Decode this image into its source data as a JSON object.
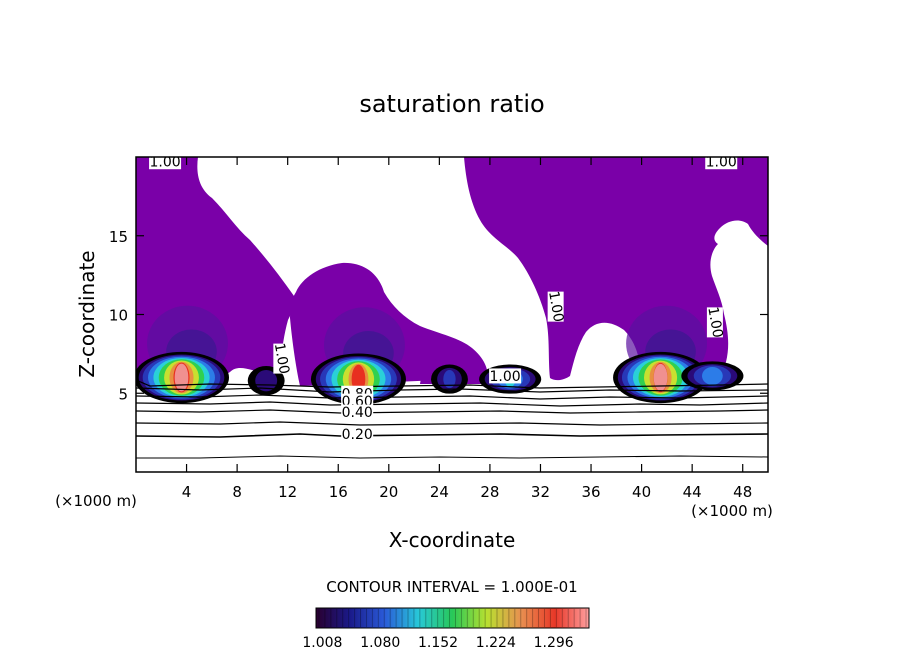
{
  "chart_data": {
    "type": "heatmap",
    "title": "saturation ratio",
    "xlabel": "X-coordinate",
    "ylabel": "Z-coordinate",
    "x_unit_label_left": "(×1000 m)",
    "x_unit_label_right": "(×1000 m)",
    "xlim": [
      0,
      50
    ],
    "ylim": [
      0,
      20
    ],
    "x_ticks": [
      4,
      8,
      12,
      16,
      20,
      24,
      28,
      32,
      36,
      40,
      44,
      48
    ],
    "y_ticks": [
      5,
      10,
      15
    ],
    "contour_interval_text": "CONTOUR INTERVAL = 1.000E-01",
    "colorbar_ticks": [
      "1.008",
      "1.080",
      "1.152",
      "1.224",
      "1.296"
    ],
    "colorbar_range": [
      1.0,
      1.34
    ],
    "colorbar_colors": [
      "#2a0030",
      "#1a1a8a",
      "#2a5ad8",
      "#28c8d8",
      "#28c858",
      "#b8e030",
      "#e89050",
      "#e83828",
      "#ffa0a0"
    ],
    "contour_labels": [
      {
        "text": "1.00",
        "x": 2.3,
        "z": 19.7
      },
      {
        "text": "1.00",
        "x": 46.3,
        "z": 19.7
      },
      {
        "text": "1.00",
        "x": 33.2,
        "z": 10.5
      },
      {
        "text": "1.00",
        "x": 11.5,
        "z": 7.2
      },
      {
        "text": "1.00",
        "x": 45.8,
        "z": 9.5
      },
      {
        "text": "1.00",
        "x": 29.2,
        "z": 6.1
      },
      {
        "text": "0.80",
        "x": 17.5,
        "z": 5.0
      },
      {
        "text": "0.60",
        "x": 17.5,
        "z": 4.5
      },
      {
        "text": "0.40",
        "x": 17.5,
        "z": 3.8
      },
      {
        "text": "0.20",
        "x": 17.5,
        "z": 2.4
      }
    ],
    "cloud_cores": [
      {
        "x_center": 3.6,
        "z_center": 6.0,
        "peak": 1.32
      },
      {
        "x_center": 10.3,
        "z_center": 5.8,
        "peak": 1.04
      },
      {
        "x_center": 17.6,
        "z_center": 5.9,
        "peak": 1.3
      },
      {
        "x_center": 24.8,
        "z_center": 5.9,
        "peak": 1.06
      },
      {
        "x_center": 29.6,
        "z_center": 5.9,
        "peak": 1.14
      },
      {
        "x_center": 41.5,
        "z_center": 6.0,
        "peak": 1.31
      },
      {
        "x_center": 45.6,
        "z_center": 6.1,
        "peak": 1.12
      }
    ]
  }
}
